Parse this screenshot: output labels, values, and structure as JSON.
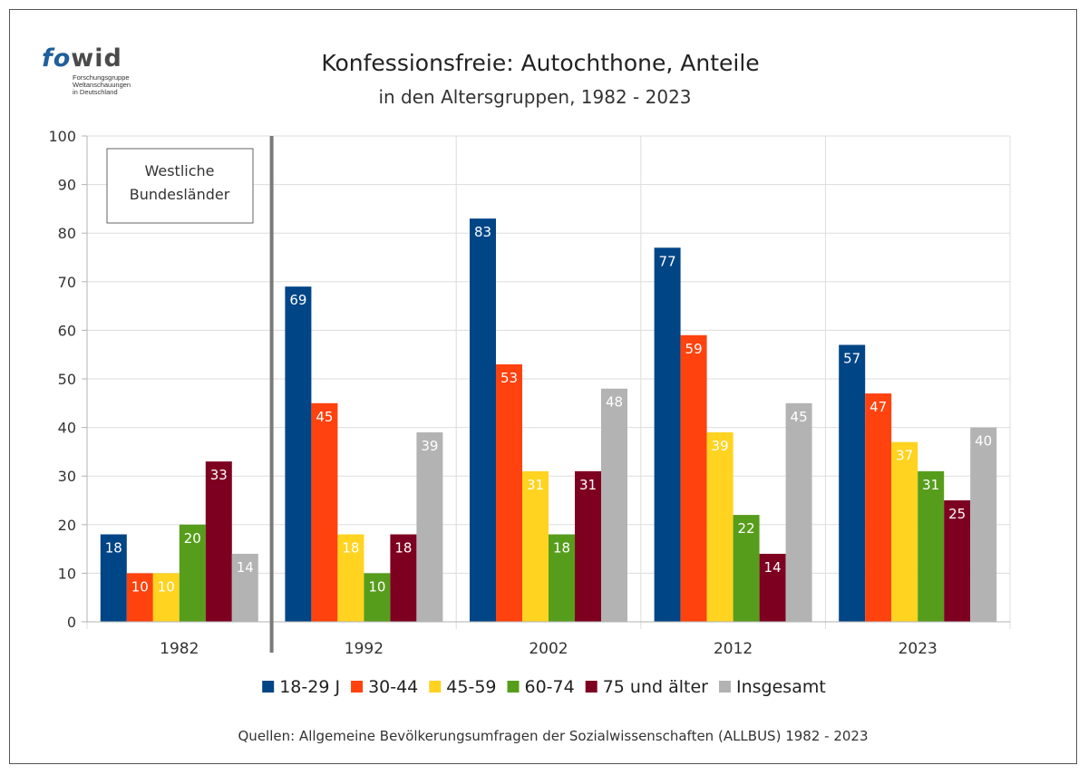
{
  "logo": {
    "word_fo": "fo",
    "word_wid": "wid",
    "sub_line1": "Forschungsgruppe",
    "sub_line2": "Weltanschauungen",
    "sub_line3": "in Deutschland"
  },
  "chart_data": {
    "type": "bar",
    "title": "Konfessionsfreie: Autochthone, Anteile",
    "subtitle": "in den Altersgruppen, 1982 - 2023",
    "xlabel": "",
    "ylabel": "",
    "ylim": [
      0,
      100
    ],
    "yticks": [
      0,
      10,
      20,
      30,
      40,
      50,
      60,
      70,
      80,
      90,
      100
    ],
    "grid": true,
    "legend_position": "bottom",
    "categories": [
      "1982",
      "1992",
      "2002",
      "2012",
      "2023"
    ],
    "series": [
      {
        "name": "18-29 J",
        "color": "#004586",
        "values": [
          18,
          69,
          83,
          77,
          57
        ]
      },
      {
        "name": "30-44",
        "color": "#ff420e",
        "values": [
          10,
          45,
          53,
          59,
          47
        ]
      },
      {
        "name": "45-59",
        "color": "#ffd320",
        "values": [
          10,
          18,
          31,
          39,
          37
        ]
      },
      {
        "name": "60-74",
        "color": "#579d1c",
        "values": [
          20,
          10,
          18,
          22,
          31
        ]
      },
      {
        "name": "75 und älter",
        "color": "#7e0021",
        "values": [
          33,
          18,
          31,
          14,
          25
        ]
      },
      {
        "name": "Insgesamt",
        "color": "#b3b3b3",
        "values": [
          14,
          39,
          48,
          45,
          40
        ]
      }
    ],
    "annotation": "Westliche Bundesländer",
    "annotation_lines": [
      "Westliche",
      "Bundesländer"
    ],
    "source": "Quellen: Allgemeine Bevölkerungsumfragen der Sozialwissenschaften (ALLBUS) 1982 - 2023"
  }
}
